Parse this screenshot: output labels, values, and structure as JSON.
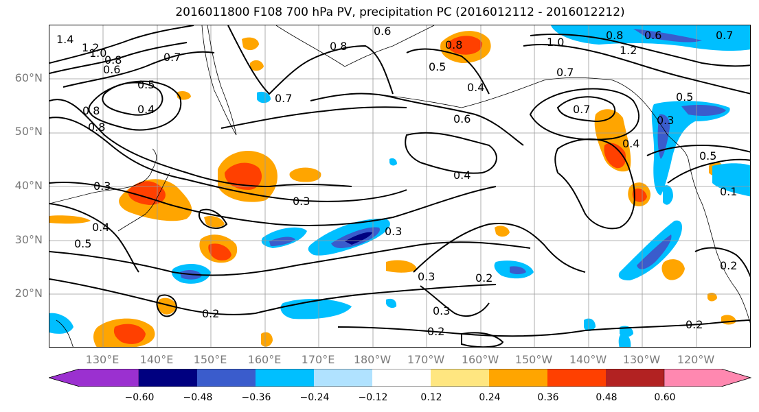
{
  "title": "2016011800 F108 700 hPa PV, precipitation PC (2016012112 - 2016012212)",
  "lat_labels": [
    "60°N",
    "50°N",
    "40°N",
    "30°N",
    "20°N"
  ],
  "lon_labels": [
    "130°E",
    "140°E",
    "150°E",
    "160°E",
    "170°E",
    "180°W",
    "170°W",
    "160°W",
    "150°W",
    "140°W",
    "130°W",
    "120°W"
  ],
  "colorbar": {
    "ticks": [
      "−0.60",
      "−0.48",
      "−0.36",
      "−0.24",
      "−0.12",
      "0.12",
      "0.24",
      "0.36",
      "0.48",
      "0.60"
    ],
    "colors": [
      "#9b30d0",
      "#000080",
      "#3a5ccc",
      "#00bfff",
      "#b0e2ff",
      "#ffffff",
      "#ffe680",
      "#ffa500",
      "#ff4000",
      "#b22222",
      "#ff88b0"
    ]
  },
  "contour_labels": [
    {
      "text": "1.4"
    },
    {
      "text": "1.2"
    },
    {
      "text": "1.0"
    },
    {
      "text": "0.8"
    },
    {
      "text": "0.6"
    },
    {
      "text": "0.7"
    },
    {
      "text": "0.5"
    },
    {
      "text": "0.4"
    },
    {
      "text": "0.8"
    },
    {
      "text": "0.8"
    },
    {
      "text": "0.6"
    },
    {
      "text": "0.8"
    },
    {
      "text": "0.7"
    },
    {
      "text": "0.8"
    },
    {
      "text": "0.5"
    },
    {
      "text": "0.4"
    },
    {
      "text": "0.6"
    },
    {
      "text": "1.0"
    },
    {
      "text": "0.8"
    },
    {
      "text": "0.6"
    },
    {
      "text": "0.7"
    },
    {
      "text": "1.2"
    },
    {
      "text": "0.7"
    },
    {
      "text": "0.7"
    },
    {
      "text": "0.5"
    },
    {
      "text": "0.3"
    },
    {
      "text": "0.4"
    },
    {
      "text": "0.5"
    },
    {
      "text": "0.3"
    },
    {
      "text": "0.4"
    },
    {
      "text": "0.5"
    },
    {
      "text": "0.3"
    },
    {
      "text": "0.4"
    },
    {
      "text": "0.3"
    },
    {
      "text": "0.3"
    },
    {
      "text": "0.2"
    },
    {
      "text": "0.3"
    },
    {
      "text": "0.2"
    },
    {
      "text": "0.2"
    },
    {
      "text": "0.2"
    },
    {
      "text": "0.2"
    },
    {
      "text": "0.1"
    }
  ]
}
